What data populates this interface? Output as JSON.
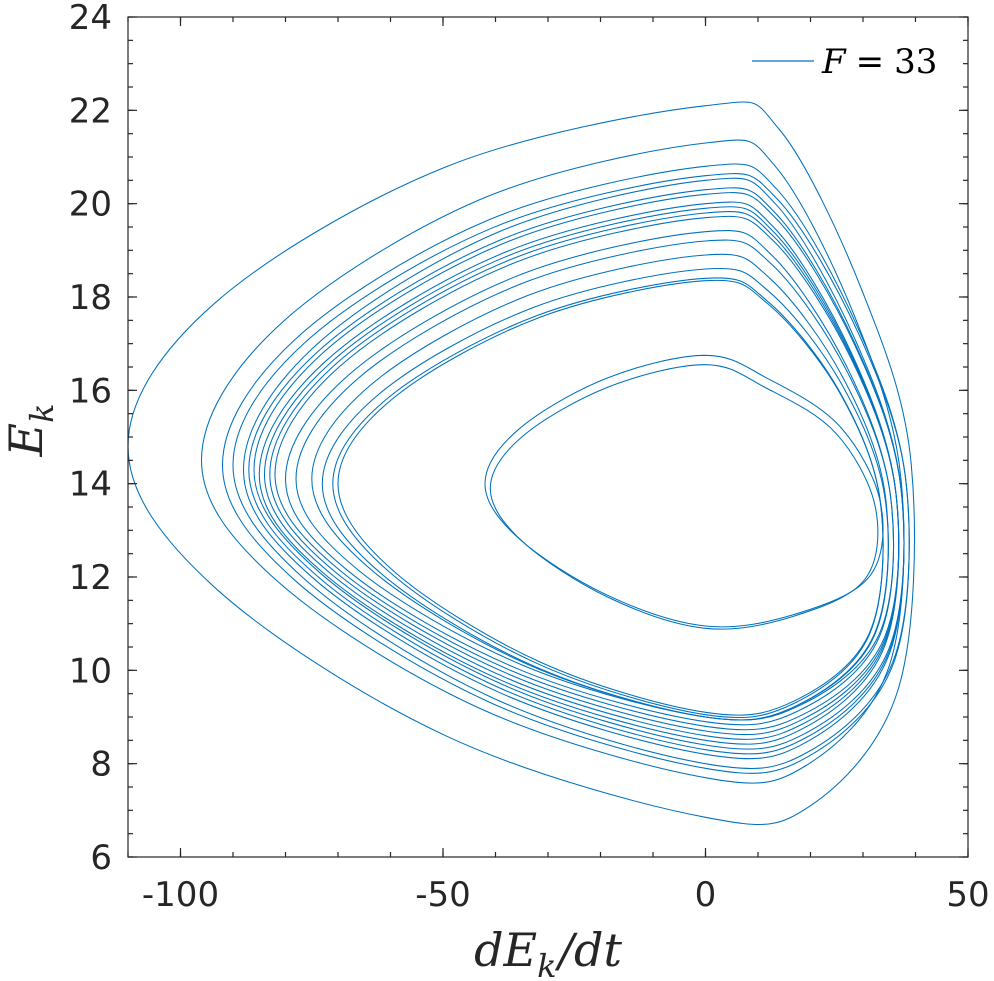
{
  "chart_data": {
    "type": "line",
    "title": "",
    "xlabel": "dE_k/dt",
    "ylabel": "E_k",
    "xlim": [
      -110,
      50
    ],
    "ylim": [
      6,
      24
    ],
    "grid": false,
    "legend_position": "top-right",
    "x_ticks": [
      -100,
      -50,
      0,
      50
    ],
    "y_ticks": [
      6,
      8,
      10,
      12,
      14,
      16,
      18,
      20,
      22,
      24
    ],
    "x_tick_labels": [
      "-100",
      "-50",
      "0",
      "50"
    ],
    "y_tick_labels": [
      "6",
      "8",
      "10",
      "12",
      "14",
      "16",
      "18",
      "20",
      "22",
      "24"
    ],
    "series": [
      {
        "name": "F = 33",
        "color": "#0072BD",
        "description": "phase-space trajectory of kinetic energy E_k versus its time derivative dE_k/dt",
        "orbits": [
          {
            "x_left": -110,
            "x_right": 40,
            "y_top": 22.1,
            "y_bottom": 6.85,
            "y_at_left": 14.8
          },
          {
            "x_left": -96,
            "x_right": 38,
            "y_top": 21.3,
            "y_bottom": 7.7,
            "y_at_left": 14.5
          },
          {
            "x_left": -92,
            "x_right": 39,
            "y_top": 20.8,
            "y_bottom": 7.9,
            "y_at_left": 14.4
          },
          {
            "x_left": -90,
            "x_right": 39,
            "y_top": 20.6,
            "y_bottom": 8.0,
            "y_at_left": 14.4
          },
          {
            "x_left": -88,
            "x_right": 38,
            "y_top": 20.5,
            "y_bottom": 8.2,
            "y_at_left": 14.3
          },
          {
            "x_left": -87,
            "x_right": 38,
            "y_top": 20.3,
            "y_bottom": 8.3,
            "y_at_left": 14.3
          },
          {
            "x_left": -86,
            "x_right": 38,
            "y_top": 20.2,
            "y_bottom": 8.4,
            "y_at_left": 14.3
          },
          {
            "x_left": -85,
            "x_right": 37,
            "y_top": 20.0,
            "y_bottom": 8.5,
            "y_at_left": 14.2
          },
          {
            "x_left": -84,
            "x_right": 37,
            "y_top": 19.9,
            "y_bottom": 8.6,
            "y_at_left": 14.2
          },
          {
            "x_left": -83,
            "x_right": 37,
            "y_top": 19.8,
            "y_bottom": 8.7,
            "y_at_left": 14.2
          },
          {
            "x_left": -82,
            "x_right": 37,
            "y_top": 19.7,
            "y_bottom": 8.8,
            "y_at_left": 14.2
          },
          {
            "x_left": -80,
            "x_right": 36,
            "y_top": 19.4,
            "y_bottom": 8.9,
            "y_at_left": 14.1
          },
          {
            "x_left": -78,
            "x_right": 36,
            "y_top": 19.2,
            "y_bottom": 9.0,
            "y_at_left": 14.1
          },
          {
            "x_left": -75,
            "x_right": 35,
            "y_top": 18.9,
            "y_bottom": 9.0,
            "y_at_left": 14.1
          },
          {
            "x_left": -73,
            "x_right": 35,
            "y_top": 18.6,
            "y_bottom": 9.0,
            "y_at_left": 14.0
          },
          {
            "x_left": -71,
            "x_right": 34,
            "y_top": 18.4,
            "y_bottom": 9.05,
            "y_at_left": 14.0
          },
          {
            "x_left": -70,
            "x_right": 34,
            "y_top": 18.35,
            "y_bottom": 9.1,
            "y_at_left": 14.0
          },
          {
            "x_left": -42,
            "x_right": 34,
            "y_top": 16.75,
            "y_bottom": 10.95,
            "y_at_left": 14.0
          },
          {
            "x_left": -41,
            "x_right": 33,
            "y_top": 16.55,
            "y_bottom": 10.9,
            "y_at_left": 13.9
          }
        ]
      }
    ]
  },
  "legend": {
    "label": "F = 33",
    "line_color": "#0072BD"
  }
}
